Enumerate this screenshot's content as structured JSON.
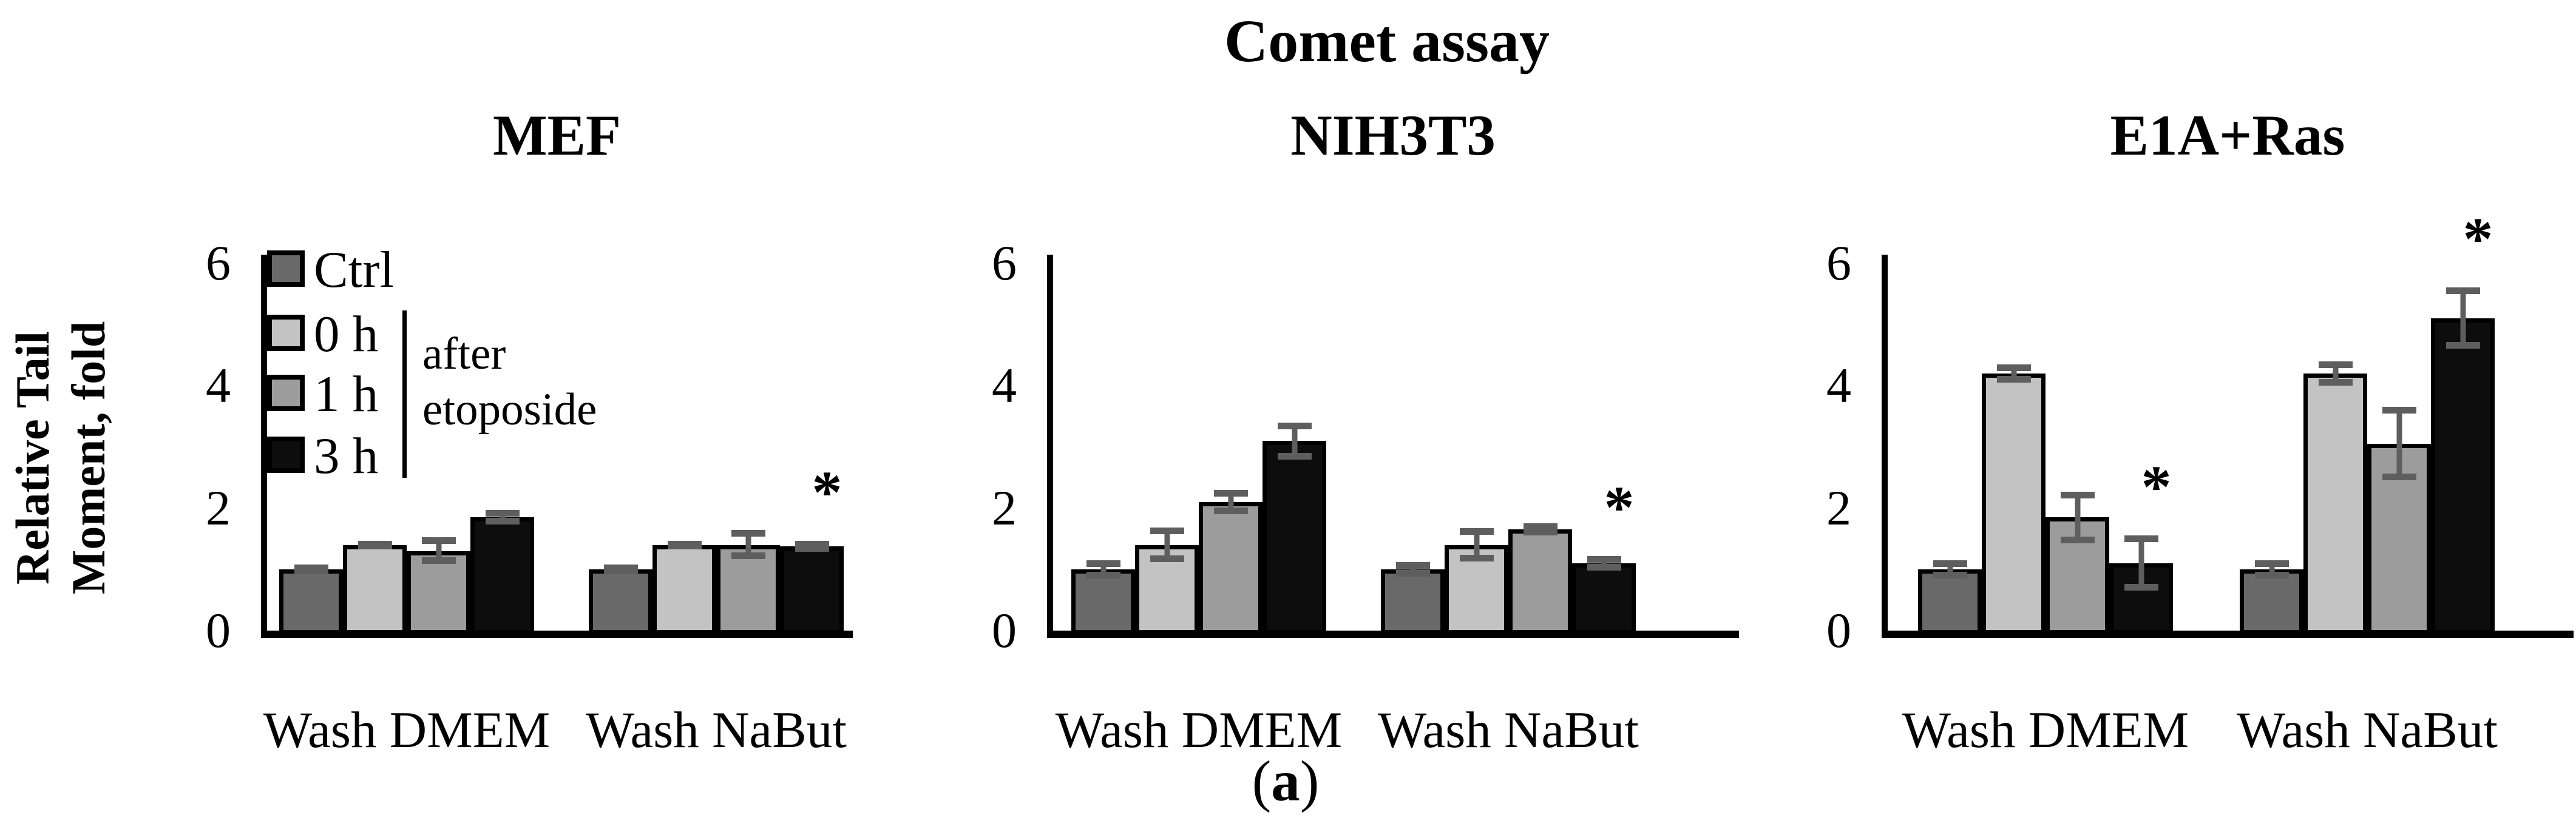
{
  "figure": {
    "subfigure_label": {
      "prefix": "(",
      "letter": "a",
      "suffix": ")"
    },
    "significance_marker": "*"
  },
  "legend": {
    "items": [
      "Ctrl",
      "0 h",
      "1 h",
      "3 h"
    ],
    "annotation": "after\netoposide"
  },
  "chart_data": {
    "type": "bar",
    "title": "Comet assay",
    "ylabel": "Relative Tail\nMoment, fold",
    "xlabel": "",
    "ylim": [
      0,
      6
    ],
    "yticks": [
      0,
      2,
      4,
      6
    ],
    "grid": false,
    "legend_position": "upper-left-first-panel",
    "categories": [
      "Wash DMEM",
      "Wash NaBut"
    ],
    "series": [
      "Ctrl",
      "0 h",
      "1 h",
      "3 h"
    ],
    "series_note": "0 h / 1 h / 3 h are times after etoposide",
    "series_colors": {
      "Ctrl": "#696969",
      "0 h": "#c3c3c3",
      "1 h": "#9c9c9c",
      "3 h": "#0d0d0d"
    },
    "error_bar_color": "#5e5e5e",
    "panels": [
      {
        "title": "MEF",
        "groups": [
          {
            "category": "Wash DMEM",
            "bars": [
              {
                "series": "Ctrl",
                "value": 1.0,
                "error": 0.08,
                "sig": false
              },
              {
                "series": "0 h",
                "value": 1.4,
                "error": 0.07,
                "sig": false
              },
              {
                "series": "1 h",
                "value": 1.3,
                "error": 0.22,
                "sig": false
              },
              {
                "series": "3 h",
                "value": 1.85,
                "error": 0.12,
                "sig": false
              }
            ]
          },
          {
            "category": "Wash NaBut",
            "bars": [
              {
                "series": "Ctrl",
                "value": 1.0,
                "error": 0.08,
                "sig": false
              },
              {
                "series": "0 h",
                "value": 1.4,
                "error": 0.07,
                "sig": false
              },
              {
                "series": "1 h",
                "value": 1.4,
                "error": 0.24,
                "sig": false
              },
              {
                "series": "3 h",
                "value": 1.38,
                "error": 0.09,
                "sig": true
              }
            ]
          }
        ]
      },
      {
        "title": "NIH3T3",
        "groups": [
          {
            "category": "Wash DMEM",
            "bars": [
              {
                "series": "Ctrl",
                "value": 1.0,
                "error": 0.15,
                "sig": false
              },
              {
                "series": "0 h",
                "value": 1.4,
                "error": 0.28,
                "sig": false
              },
              {
                "series": "1 h",
                "value": 2.1,
                "error": 0.2,
                "sig": false
              },
              {
                "series": "3 h",
                "value": 3.1,
                "error": 0.3,
                "sig": false
              }
            ]
          },
          {
            "category": "Wash NaBut",
            "bars": [
              {
                "series": "Ctrl",
                "value": 1.0,
                "error": 0.12,
                "sig": false
              },
              {
                "series": "0 h",
                "value": 1.4,
                "error": 0.27,
                "sig": false
              },
              {
                "series": "1 h",
                "value": 1.65,
                "error": 0.1,
                "sig": false
              },
              {
                "series": "3 h",
                "value": 1.1,
                "error": 0.12,
                "sig": true
              }
            ]
          }
        ]
      },
      {
        "title": "E1A+Ras",
        "groups": [
          {
            "category": "Wash DMEM",
            "bars": [
              {
                "series": "Ctrl",
                "value": 1.0,
                "error": 0.15,
                "sig": false
              },
              {
                "series": "0 h",
                "value": 4.2,
                "error": 0.15,
                "sig": false
              },
              {
                "series": "1 h",
                "value": 1.85,
                "error": 0.42,
                "sig": false
              },
              {
                "series": "3 h",
                "value": 1.1,
                "error": 0.45,
                "sig": true
              }
            ]
          },
          {
            "category": "Wash NaBut",
            "bars": [
              {
                "series": "Ctrl",
                "value": 1.0,
                "error": 0.15,
                "sig": false
              },
              {
                "series": "0 h",
                "value": 4.2,
                "error": 0.2,
                "sig": false
              },
              {
                "series": "1 h",
                "value": 3.05,
                "error": 0.6,
                "sig": false
              },
              {
                "series": "3 h",
                "value": 5.1,
                "error": 0.5,
                "sig": true
              }
            ]
          }
        ]
      }
    ]
  }
}
